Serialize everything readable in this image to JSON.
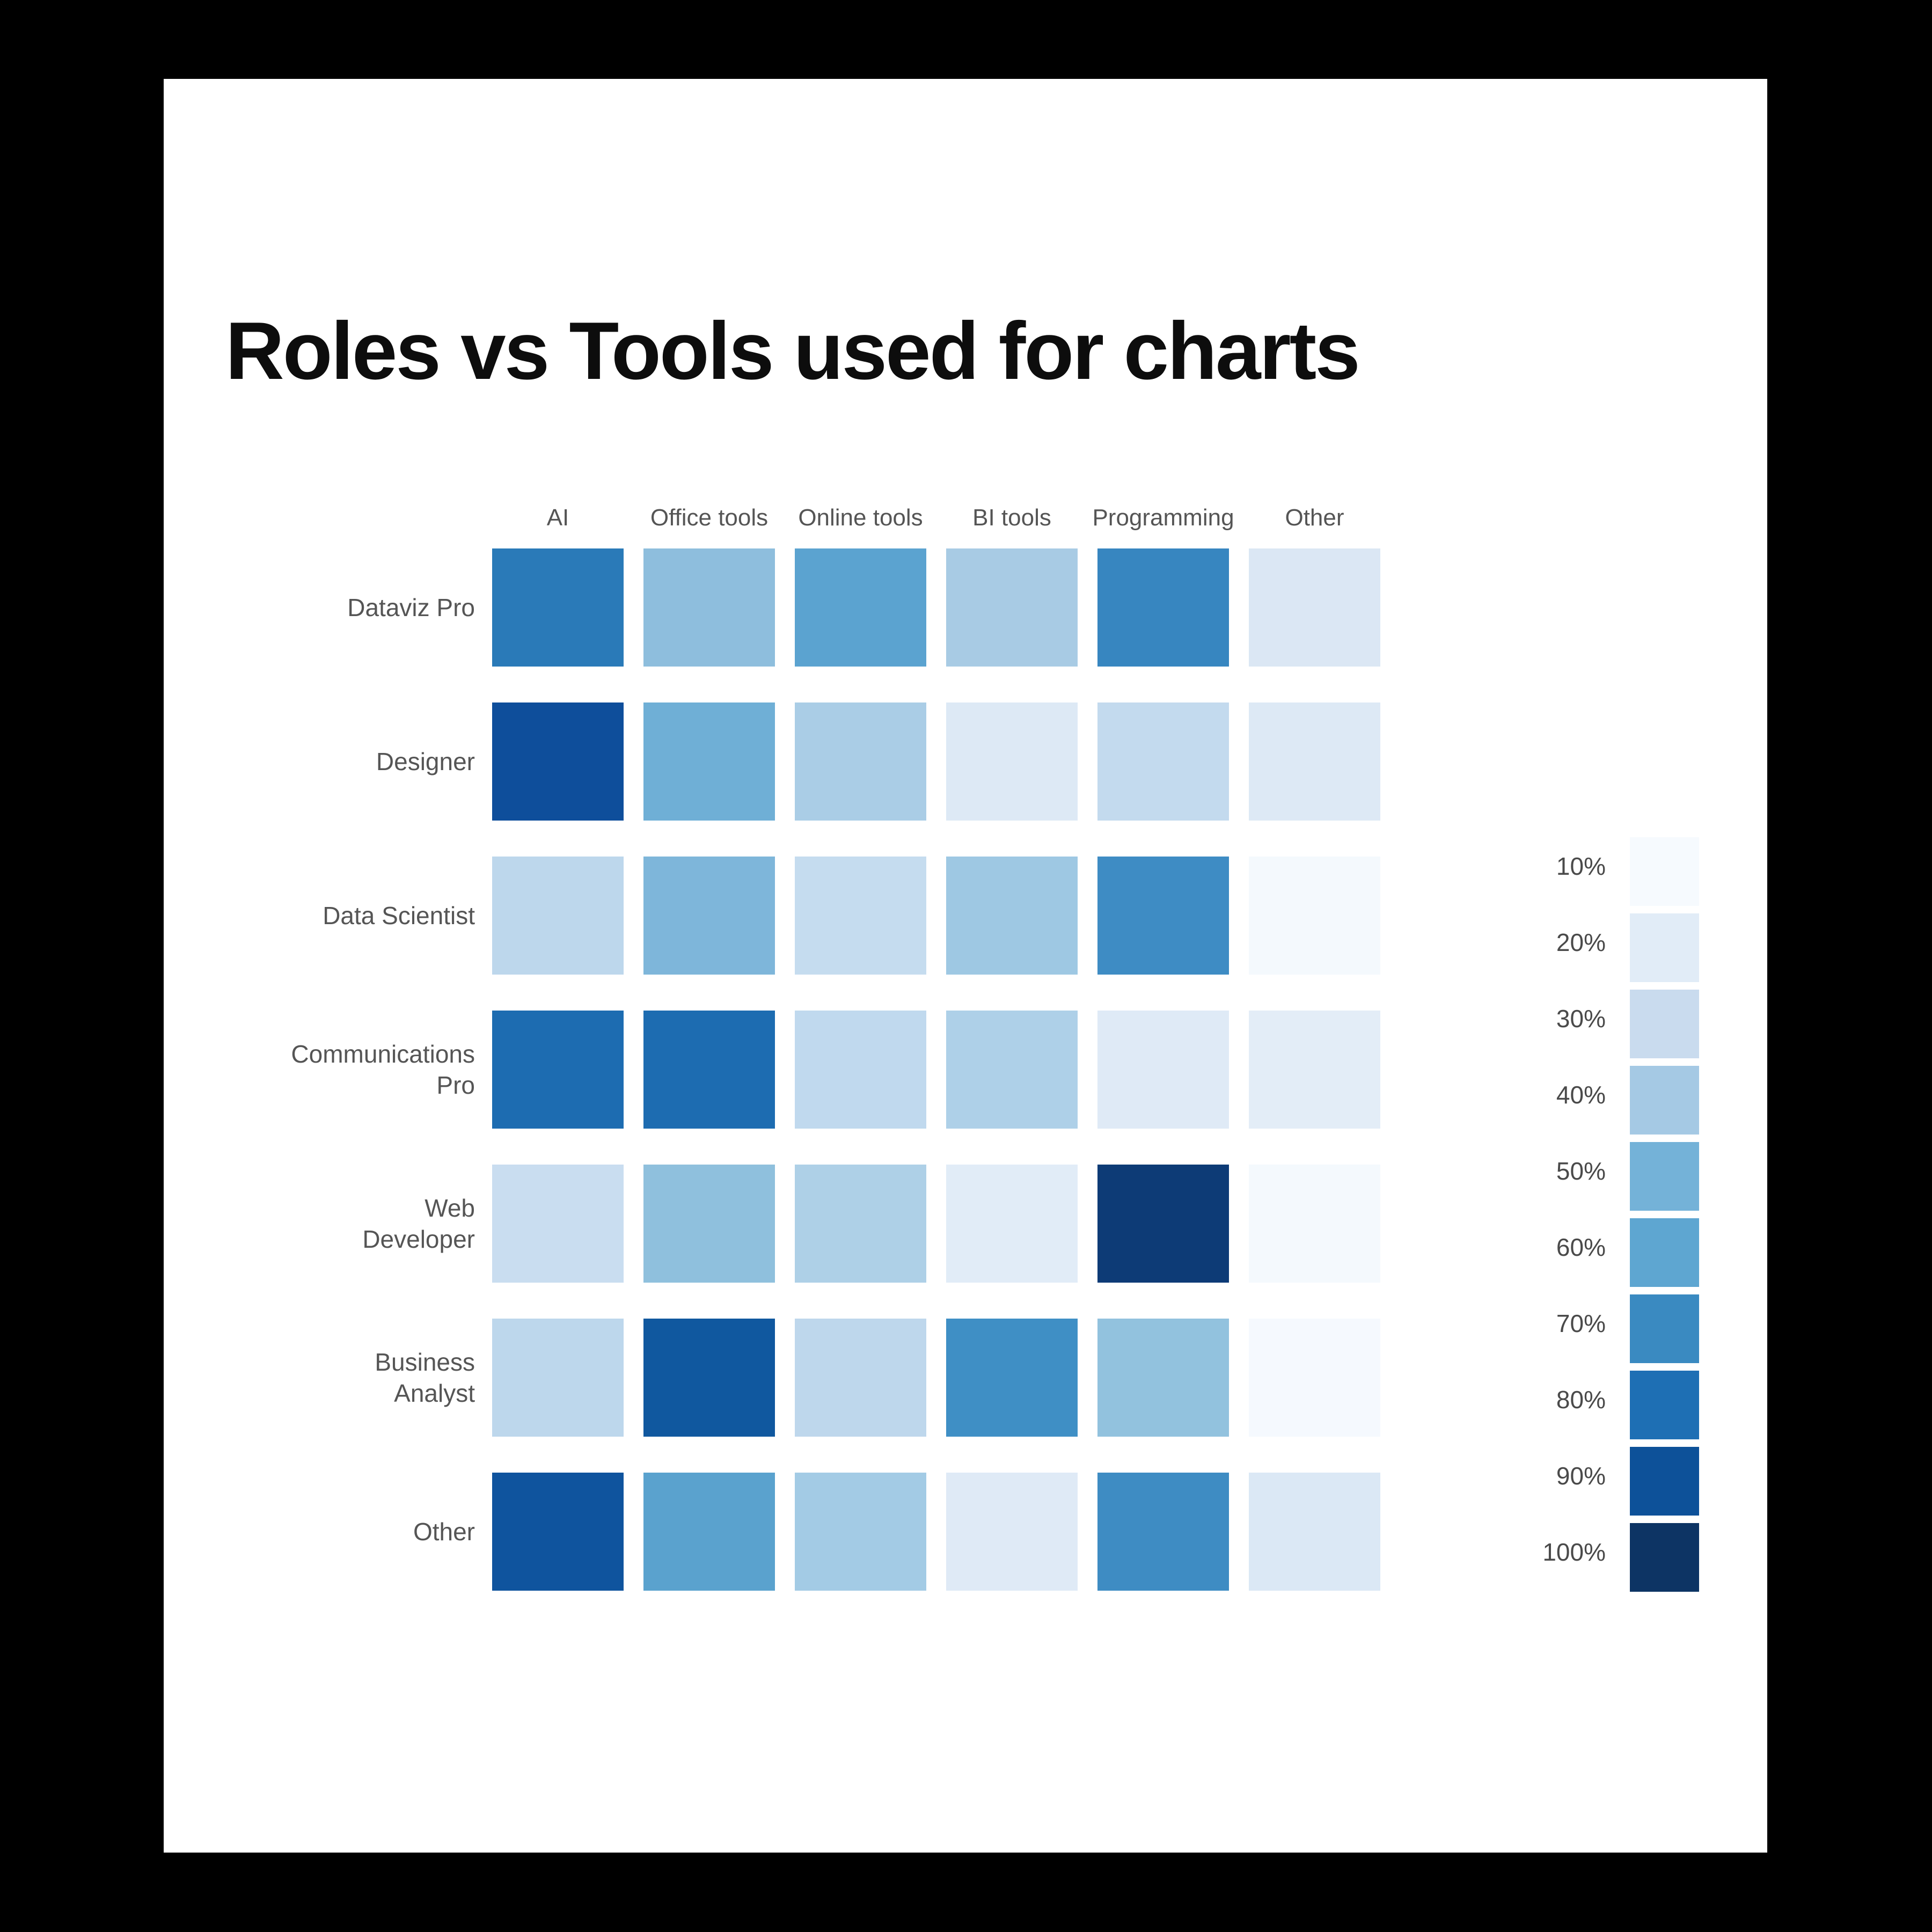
{
  "page": {
    "title": "Roles vs Tools used for charts",
    "background_color": "#ffffff",
    "frame_color": "#000000",
    "title_color": "#0d0d0d",
    "label_color": "#555555"
  },
  "chart_data": {
    "type": "heatmap",
    "title": "Roles vs Tools used for charts",
    "columns": [
      "AI",
      "Office tools",
      "Online tools",
      "BI tools",
      "Programming",
      "Other"
    ],
    "rows": [
      "Dataviz Pro",
      "Designer",
      "Data Scientist",
      "Communications\nPro",
      "Web\nDeveloper",
      "Business\nAnalyst",
      "Other"
    ],
    "values_percent": [
      [
        75,
        45,
        60,
        40,
        70,
        20
      ],
      [
        90,
        55,
        40,
        20,
        30,
        20
      ],
      [
        35,
        50,
        30,
        45,
        70,
        10
      ],
      [
        80,
        80,
        30,
        40,
        20,
        20
      ],
      [
        30,
        45,
        40,
        20,
        100,
        10
      ],
      [
        35,
        90,
        35,
        70,
        45,
        10
      ],
      [
        90,
        60,
        40,
        20,
        70,
        20
      ]
    ],
    "cell_colors": [
      [
        "#2a7ab8",
        "#8ebedd",
        "#5ba3d0",
        "#a8cbe4",
        "#3786c0",
        "#dbe7f4"
      ],
      [
        "#0e4e9b",
        "#6fafd6",
        "#aacde6",
        "#dde9f5",
        "#c3daee",
        "#dde9f5"
      ],
      [
        "#bdd7ec",
        "#7eb6da",
        "#c5dcef",
        "#9ec8e3",
        "#3e8cc4",
        "#f4f9fd"
      ],
      [
        "#1d6cb1",
        "#1d6cb1",
        "#c0d9ee",
        "#aed0e8",
        "#dfeaf6",
        "#e3edf7"
      ],
      [
        "#c9ddf0",
        "#8fc0dd",
        "#aed0e7",
        "#e1ecf7",
        "#0d3b76",
        "#f4f9fd"
      ],
      [
        "#bdd7ec",
        "#10589f",
        "#bed7ec",
        "#3f8fc5",
        "#92c2de",
        "#f5f9fe"
      ],
      [
        "#0f549e",
        "#5aa2ce",
        "#a3cbe5",
        "#dfeaf6",
        "#3e8cc3",
        "#dbe8f5"
      ]
    ],
    "legend": {
      "position": "right",
      "labels": [
        "10%",
        "20%",
        "30%",
        "40%",
        "50%",
        "60%",
        "70%",
        "80%",
        "90%",
        "100%"
      ],
      "colors": [
        "#f6fafe",
        "#e1ecf7",
        "#c9dbee",
        "#a5c9e4",
        "#74b2d8",
        "#5ea6d1",
        "#3a8ac1",
        "#1e6fb4",
        "#0d5199",
        "#0d3464"
      ]
    },
    "grid": false
  }
}
